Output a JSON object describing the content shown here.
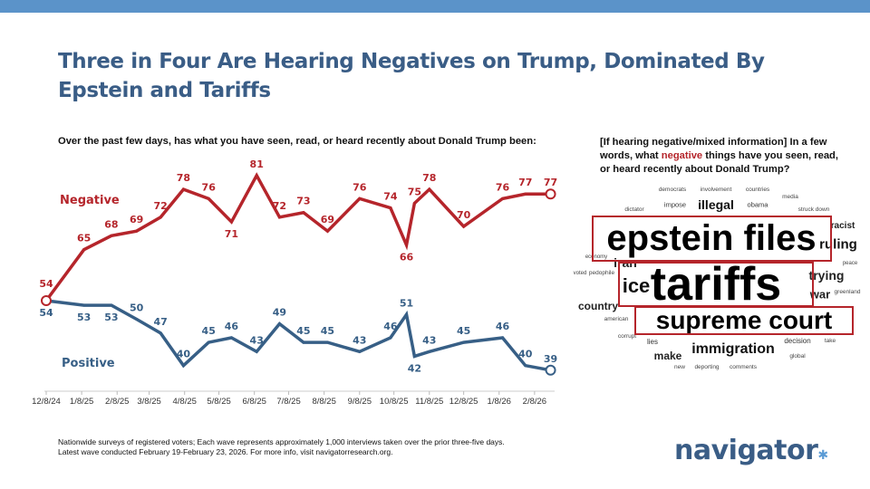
{
  "title": "Three in Four Are Hearing Negatives on Trump, Dominated By Epstein and Tariffs",
  "left_question": "Over the past few days, has what you have seen, read, or heard recently about Donald Trump been:",
  "right_question": {
    "before": "[If hearing negative/mixed information] In a few words, what ",
    "highlight": "negative",
    "after": " things have you seen, read, or heard recently about Donald Trump?"
  },
  "colors": {
    "negative": "#b5252b",
    "positive": "#375f86",
    "top_bar": "#5b93c9",
    "title": "#3a5d86"
  },
  "chart_data": {
    "type": "line",
    "x_tick_labels": [
      "12/8/24",
      "1/8/25",
      "2/8/25",
      "3/8/25",
      "4/8/25",
      "5/8/25",
      "6/8/25",
      "7/8/25",
      "8/8/25",
      "9/8/25",
      "10/8/25",
      "11/8/25",
      "12/8/25",
      "1/8/26",
      "2/8/26"
    ],
    "x": [
      "2024-12-08",
      "2025-01-10",
      "2025-02-03",
      "2025-02-25",
      "2025-03-18",
      "2025-04-07",
      "2025-04-29",
      "2025-05-19",
      "2025-06-10",
      "2025-06-30",
      "2025-07-21",
      "2025-08-11",
      "2025-09-08",
      "2025-10-05",
      "2025-10-19",
      "2025-10-26",
      "2025-11-08",
      "2025-12-08",
      "2026-01-11",
      "2026-01-31",
      "2026-02-22"
    ],
    "ylim": [
      35,
      85
    ],
    "grid": false,
    "series": [
      {
        "name": "Negative",
        "values": [
          54,
          65,
          68,
          69,
          72,
          78,
          76,
          71,
          81,
          72,
          73,
          69,
          76,
          74,
          66,
          75,
          78,
          70,
          76,
          77,
          77
        ]
      },
      {
        "name": "Positive",
        "values": [
          54,
          53,
          53,
          50,
          47,
          40,
          45,
          46,
          43,
          49,
          45,
          45,
          43,
          46,
          51,
          42,
          43,
          45,
          46,
          40,
          39
        ]
      }
    ]
  },
  "word_cloud": {
    "highlighted": [
      "epstein files",
      "tariffs",
      "supreme court"
    ],
    "words": [
      "democrats",
      "involvement",
      "countries",
      "media",
      "dictator",
      "impose",
      "illegal",
      "obama",
      "struck down",
      "racist",
      "epstein files",
      "ruling",
      "economy",
      "iran",
      "ice",
      "peace",
      "voted",
      "pedophile",
      "tariffs",
      "trying",
      "country",
      "war",
      "greenland",
      "american",
      "supreme court",
      "corrupt",
      "lies",
      "decision",
      "take",
      "immigration",
      "make",
      "global",
      "new",
      "deporting",
      "comments"
    ]
  },
  "footnote": {
    "line1": "Nationwide surveys of registered voters; Each wave represents approximately 1,000 interviews taken over the prior three-five days.",
    "line2": "Latest wave conducted February 19-February 23, 2026. For more info, visit navigatorresearch.org."
  },
  "logo": "navigator"
}
